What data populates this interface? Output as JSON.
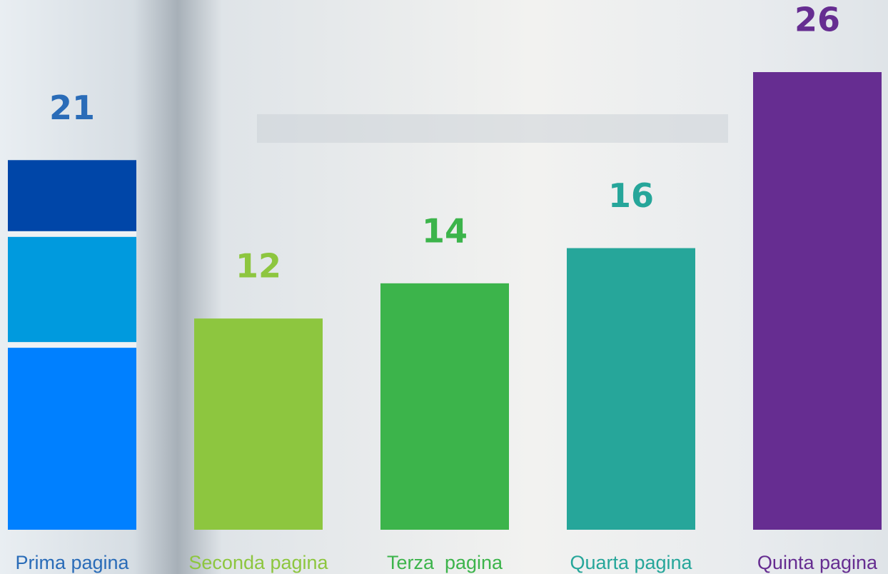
{
  "chart_data": {
    "type": "bar",
    "categories": [
      "Prima pagina",
      "Seconda pagina",
      "Terza  pagina",
      "Quarta pagina",
      "Quinta pagina"
    ],
    "values": [
      21,
      12,
      14,
      16,
      26
    ],
    "colors": [
      "#0080ff",
      "#8dc63f",
      "#3cb44b",
      "#26a69a",
      "#662d91"
    ],
    "label_colors": [
      "#2a6cb8",
      "#8dc63f",
      "#3cb44b",
      "#26a69a",
      "#662d91"
    ],
    "first_bar_colors": [
      "#0080ff",
      "#009ade",
      "#0046a8"
    ],
    "ylim": [
      0,
      26
    ]
  }
}
